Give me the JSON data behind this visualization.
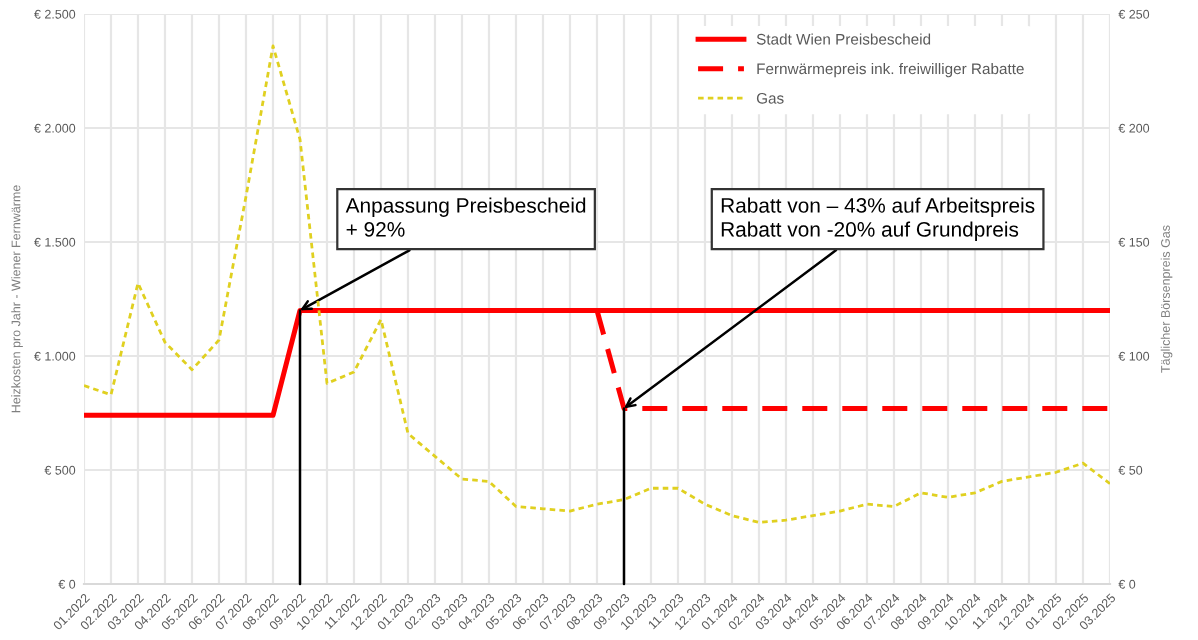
{
  "chart_data": {
    "type": "line",
    "ylabel": "Heizkosten pro Jahr - Wiener Fernwärme",
    "y2label": "Täglicher Börsenpreis Gas",
    "categories": [
      "01.2022",
      "02.2022",
      "03.2022",
      "04.2022",
      "05.2022",
      "06.2022",
      "07.2022",
      "08.2022",
      "09.2022",
      "10.2022",
      "11.2022",
      "12.2022",
      "01.2023",
      "02.2023",
      "03.2023",
      "04.2023",
      "05.2023",
      "06.2023",
      "07.2023",
      "08.2023",
      "09.2023",
      "10.2023",
      "11.2023",
      "12.2023",
      "01.2024",
      "02.2024",
      "03.2024",
      "04.2024",
      "05.2024",
      "06.2024",
      "07.2024",
      "08.2024",
      "09.2024",
      "10.2024",
      "11.2024",
      "12.2024",
      "01.2025",
      "02.2025",
      "03.2025"
    ],
    "series": [
      {
        "name": "Stadt Wien Preisbescheid",
        "color": "#ff0000",
        "line_style": "solid",
        "values": [
          740,
          740,
          740,
          740,
          740,
          740,
          740,
          740,
          1200,
          1200,
          1200,
          1200,
          1200,
          1200,
          1200,
          1200,
          1200,
          1200,
          1200,
          1200,
          1200,
          1200,
          1200,
          1200,
          1200,
          1200,
          1200,
          1200,
          1200,
          1200,
          1200,
          1200,
          1200,
          1200,
          1200,
          1200,
          1200,
          1200,
          1200
        ]
      },
      {
        "name": "Fernwärmepreis ink. freiwilliger Rabatte",
        "color": "#ff0000",
        "line_style": "dashed",
        "values": [
          null,
          null,
          null,
          null,
          null,
          null,
          null,
          null,
          null,
          null,
          null,
          null,
          null,
          null,
          null,
          null,
          null,
          null,
          null,
          1200,
          770,
          770,
          770,
          770,
          770,
          770,
          770,
          770,
          770,
          770,
          770,
          770,
          770,
          770,
          770,
          770,
          770,
          770,
          770
        ]
      },
      {
        "name": "Gas",
        "color": "#e0d020",
        "line_style": "dotted",
        "axis": "y2",
        "values": [
          87,
          83,
          132,
          106,
          94,
          107,
          170,
          236,
          195,
          88,
          93,
          116,
          66,
          56,
          46,
          45,
          34,
          33,
          32,
          35,
          37,
          42,
          42,
          35,
          30,
          27,
          28,
          30,
          32,
          35,
          34,
          40,
          38,
          40,
          45,
          47,
          49,
          53,
          44
        ]
      }
    ],
    "ylim": [
      0,
      2500
    ],
    "yticks": [
      {
        "value": 0,
        "label": "€ 0"
      },
      {
        "value": 500,
        "label": "€ 500"
      },
      {
        "value": 1000,
        "label": "€ 1.000"
      },
      {
        "value": 1500,
        "label": "€ 1.500"
      },
      {
        "value": 2000,
        "label": "€ 2.000"
      },
      {
        "value": 2500,
        "label": "€ 2.500"
      }
    ],
    "y2lim": [
      0,
      250
    ],
    "y2ticks": [
      {
        "value": 0,
        "label": "€ 0"
      },
      {
        "value": 50,
        "label": "€ 50"
      },
      {
        "value": 100,
        "label": "€ 100"
      },
      {
        "value": 150,
        "label": "€ 150"
      },
      {
        "value": 200,
        "label": "€ 200"
      },
      {
        "value": 250,
        "label": "€ 250"
      }
    ],
    "annotations": [
      {
        "text": "Anpassung Preisbescheid\n+ 92%",
        "x": "09.2022",
        "y": 1200
      },
      {
        "text": "Rabatt von – 43% auf Arbeitspreis\nRabatt von -20% auf Grundpreis",
        "x": "09.2023",
        "y": 770
      }
    ],
    "grid": true,
    "legend": "top right",
    "marker": "none"
  }
}
